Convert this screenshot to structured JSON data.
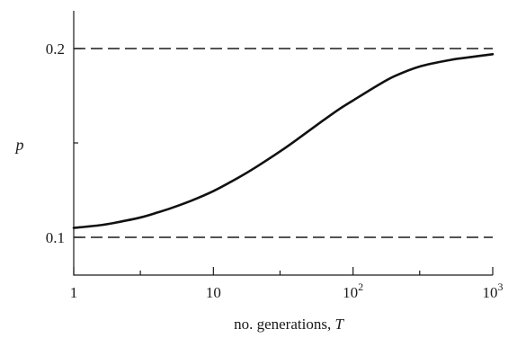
{
  "chart_data": {
    "type": "line",
    "xscale": "log",
    "xlim": [
      1,
      1000
    ],
    "ylim": [
      0.08,
      0.22
    ],
    "xlabel_prefix": "no. generations, ",
    "xlabel_var": "T",
    "ylabel": "p",
    "x_ticks_major": [
      {
        "value": 1,
        "base": "1",
        "exp": ""
      },
      {
        "value": 10,
        "base": "10",
        "exp": ""
      },
      {
        "value": 100,
        "base": "10",
        "exp": "2"
      },
      {
        "value": 1000,
        "base": "10",
        "exp": "3"
      }
    ],
    "x_ticks_minor": [
      3,
      30,
      300
    ],
    "y_ticks_major": [
      {
        "value": 0.1,
        "label": "0.1"
      },
      {
        "value": 0.2,
        "label": "0.2"
      }
    ],
    "y_ticks_minor": [
      0.15
    ],
    "reference_lines": [
      {
        "y": 0.2,
        "style": "dashed"
      },
      {
        "y": 0.1,
        "style": "dashed"
      }
    ],
    "series": [
      {
        "x": [
          1,
          1.5,
          2,
          3,
          4,
          5,
          7,
          10,
          15,
          20,
          30,
          40,
          60,
          80,
          100,
          150,
          200,
          300,
          500,
          700,
          1000
        ],
        "y": [
          0.105,
          0.1063,
          0.1078,
          0.1105,
          0.1132,
          0.1155,
          0.1195,
          0.1245,
          0.1315,
          0.137,
          0.1455,
          0.152,
          0.1615,
          0.168,
          0.1725,
          0.1805,
          0.1855,
          0.1905,
          0.194,
          0.1955,
          0.197
        ]
      }
    ]
  }
}
